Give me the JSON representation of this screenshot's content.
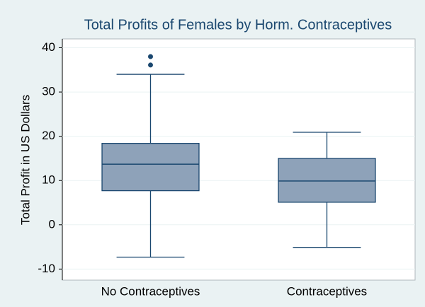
{
  "chart_data": {
    "type": "box",
    "title": "Total Profits of Females by Horm. Contraceptives",
    "y_label": "Total Profit in US Dollars",
    "categories": [
      "No Contraceptives",
      "Contraceptives"
    ],
    "boxes": [
      {
        "whisker_low": -7.3,
        "q1": 7.7,
        "median": 13.7,
        "q3": 18.4,
        "whisker_high": 34.0,
        "outliers": [
          38.0,
          36.1
        ]
      },
      {
        "whisker_low": -5.1,
        "q1": 5.1,
        "median": 9.9,
        "q3": 15.0,
        "whisker_high": 20.9,
        "outliers": []
      }
    ],
    "color": "#8ea2b9",
    "line_color": "#1a476f",
    "ylim": [
      -12.5,
      42
    ],
    "yticks": [
      -10,
      0,
      10,
      20,
      30,
      40
    ],
    "grid": true
  }
}
